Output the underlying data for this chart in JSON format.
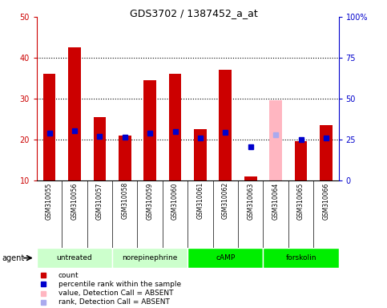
{
  "title": "GDS3702 / 1387452_a_at",
  "samples": [
    "GSM310055",
    "GSM310056",
    "GSM310057",
    "GSM310058",
    "GSM310059",
    "GSM310060",
    "GSM310061",
    "GSM310062",
    "GSM310063",
    "GSM310064",
    "GSM310065",
    "GSM310066"
  ],
  "count_values": [
    36,
    42.5,
    25.5,
    21,
    34.5,
    36,
    22.5,
    37,
    11,
    null,
    19.5,
    23.5
  ],
  "absent_count_values": [
    null,
    null,
    null,
    null,
    null,
    null,
    null,
    null,
    null,
    29.5,
    null,
    null
  ],
  "percentile_values": [
    29,
    30.5,
    27,
    26.5,
    29,
    30,
    26,
    29.5,
    20.5,
    null,
    25,
    26
  ],
  "absent_percentile_values": [
    null,
    null,
    null,
    null,
    null,
    null,
    null,
    null,
    null,
    28,
    null,
    null
  ],
  "bar_color": "#CC0000",
  "absent_bar_color": "#FFB6C1",
  "dot_color": "#0000CC",
  "absent_dot_color": "#AAAAEE",
  "ylim_left": [
    10,
    50
  ],
  "ylim_right": [
    0,
    100
  ],
  "yticks_left": [
    10,
    20,
    30,
    40,
    50
  ],
  "yticks_right": [
    0,
    25,
    50,
    75,
    100
  ],
  "ytick_labels_right": [
    "0",
    "25",
    "50",
    "75",
    "100%"
  ],
  "groups_spec": [
    {
      "label": "untreated",
      "start": 0,
      "end": 2,
      "color": "#CCFFCC"
    },
    {
      "label": "norepinephrine",
      "start": 3,
      "end": 5,
      "color": "#CCFFCC"
    },
    {
      "label": "cAMP",
      "start": 6,
      "end": 8,
      "color": "#00EE00"
    },
    {
      "label": "forskolin",
      "start": 9,
      "end": 11,
      "color": "#00EE00"
    }
  ],
  "left_tick_color": "#CC0000",
  "right_tick_color": "#0000CC",
  "grid_lines": [
    20,
    30,
    40
  ],
  "legend_items": [
    {
      "label": "count",
      "color": "#CC0000",
      "marker": "s"
    },
    {
      "label": "percentile rank within the sample",
      "color": "#0000CC",
      "marker": "s"
    },
    {
      "label": "value, Detection Call = ABSENT",
      "color": "#FFB6C1",
      "marker": "s"
    },
    {
      "label": "rank, Detection Call = ABSENT",
      "color": "#AAAAEE",
      "marker": "s"
    }
  ]
}
